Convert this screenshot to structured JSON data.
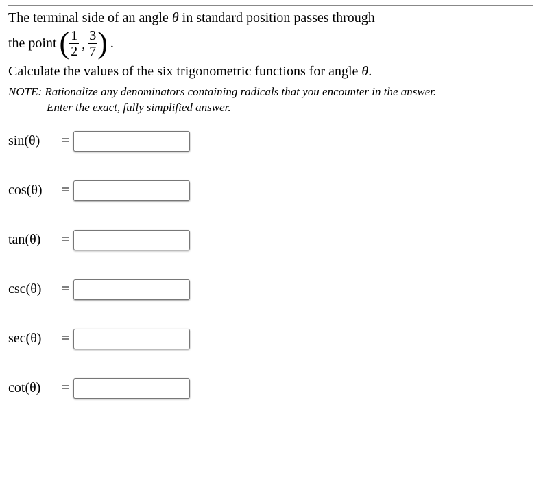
{
  "problem": {
    "line1_before": "The terminal side of an angle",
    "theta": "θ",
    "line1_after": "in standard position passes through",
    "line2_before": "the point",
    "frac1_num": "1",
    "frac1_den": "2",
    "frac2_num": "3",
    "frac2_den": "7",
    "line3": "Calculate the values of the six trigonometric functions for angle",
    "period": "."
  },
  "note": {
    "prefix": "NOTE:",
    "line1": "Rationalize any denominators containing radicals that you encounter in the answer.",
    "line2": "Enter the exact, fully simplified answer."
  },
  "labels": {
    "sin": "sin",
    "cos": "cos",
    "tan": "tan",
    "csc": "csc",
    "sec": "sec",
    "cot": "cot",
    "of_theta": "(θ)",
    "equals": "="
  }
}
